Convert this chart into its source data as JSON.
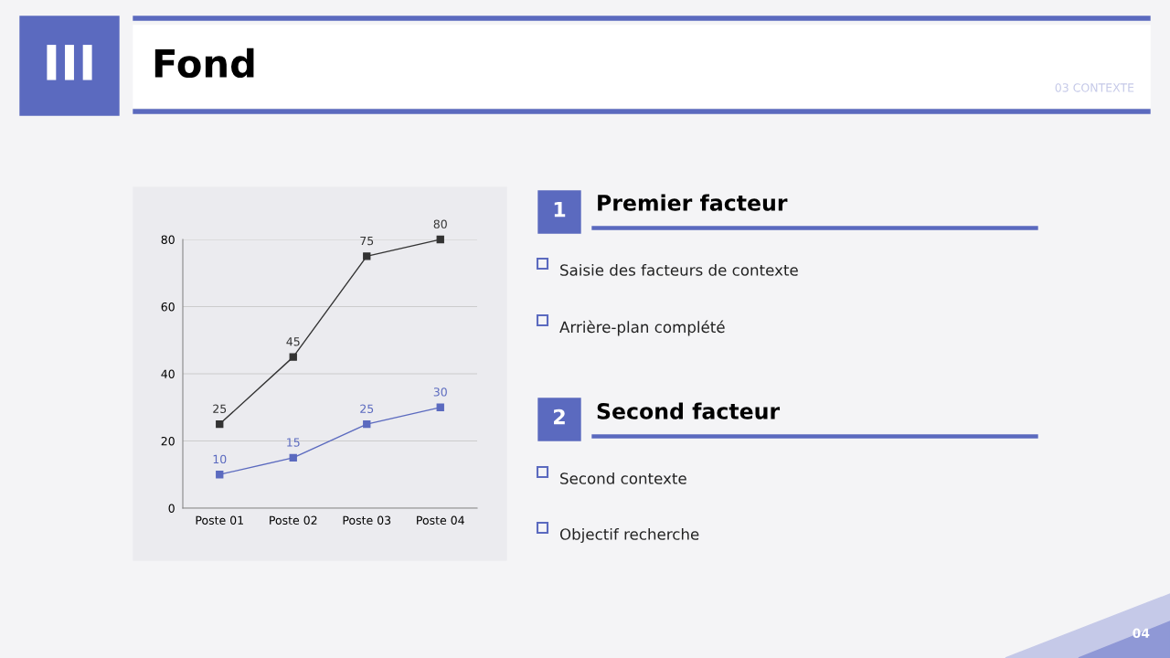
{
  "chart_data": [
    {
      "type": "line",
      "categories": [
        "Poste 01",
        "Poste 02",
        "Poste 03",
        "Poste 04"
      ],
      "series": [
        {
          "color": "#333333",
          "values": [
            25,
            45,
            75,
            80
          ]
        },
        {
          "color": "#5b6abf",
          "values": [
            10,
            15,
            25,
            30
          ]
        }
      ],
      "ylim": [
        0,
        80
      ],
      "yticks": [
        0,
        20,
        40,
        60,
        80
      ],
      "grid": "y",
      "marker": "square",
      "line_style": "solid",
      "data_labels": true,
      "legend": false
    },
    {
      "type": "other",
      "title": "Fond",
      "annotations": [
        "III",
        "03 CONTEXTE",
        "1",
        "Premier facteur",
        "Saisie des facteurs de contexte",
        "Arrière-plan complété",
        "2",
        "Second facteur",
        "Second contexte",
        "Objectif recherche",
        "04"
      ]
    }
  ]
}
